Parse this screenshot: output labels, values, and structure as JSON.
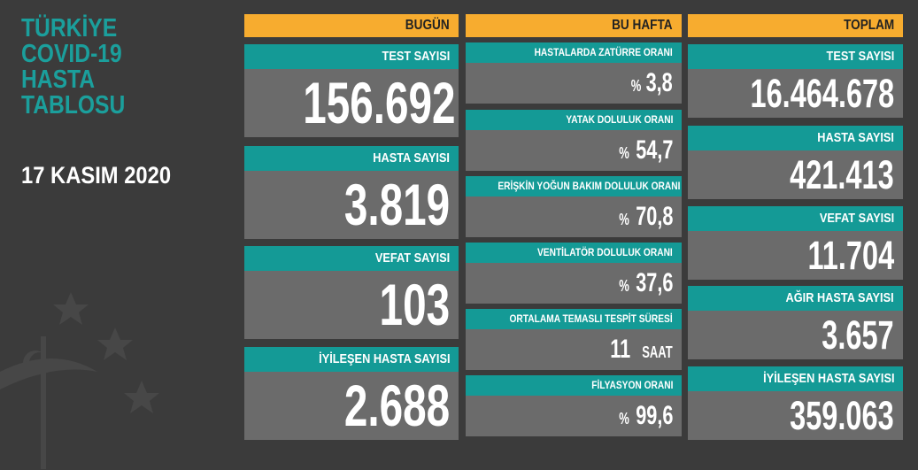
{
  "title": {
    "lines": [
      "TÜRKİYE",
      "COVID-19",
      "HASTA",
      "TABLOSU"
    ],
    "date": "17 KASIM 2020"
  },
  "columns": [
    {
      "header": "BUGÜN",
      "cards": [
        {
          "label": "TEST SAYISI",
          "value": "156.692"
        },
        {
          "label": "HASTA SAYISI",
          "value": "3.819"
        },
        {
          "label": "VEFAT SAYISI",
          "value": "103"
        },
        {
          "label": "İYİLEŞEN HASTA SAYISI",
          "value": "2.688"
        }
      ]
    },
    {
      "header": "BU HAFTA",
      "cards": [
        {
          "label": "HASTALARDA ZATÜRRE ORANI",
          "prefix": "%",
          "value": "3,8"
        },
        {
          "label": "YATAK DOLULUK ORANI",
          "prefix": "%",
          "value": "54,7"
        },
        {
          "label": "ERİŞKİN YOĞUN BAKIM DOLULUK ORANI",
          "prefix": "%",
          "value": "70,8"
        },
        {
          "label": "VENTİLATÖR DOLULUK ORANI",
          "prefix": "%",
          "value": "37,6"
        },
        {
          "label": "ORTALAMA TEMASLI TESPİT SÜRESİ",
          "value": "11",
          "unit": "SAAT"
        },
        {
          "label": "FİLYASYON ORANI",
          "prefix": "%",
          "value": "99,6"
        }
      ]
    },
    {
      "header": "TOPLAM",
      "cards": [
        {
          "label": "TEST SAYISI",
          "value": "16.464.678"
        },
        {
          "label": "HASTA SAYISI",
          "value": "421.413"
        },
        {
          "label": "VEFAT SAYISI",
          "value": "11.704"
        },
        {
          "label": "AĞIR HASTA SAYISI",
          "value": "3.657"
        },
        {
          "label": "İYİLEŞEN HASTA SAYISI",
          "value": "359.063"
        }
      ]
    }
  ]
}
